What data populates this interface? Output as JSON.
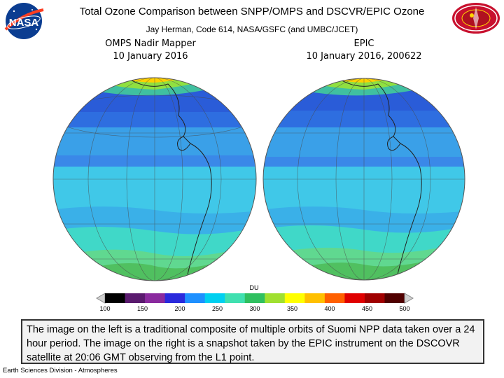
{
  "header": {
    "title": "Total Ozone Comparison between SNPP/OMPS and DSCVR/EPIC Ozone",
    "subtitle": "Jay Herman, Code 614, NASA/GSFC (and UMBC/JCET)"
  },
  "logos": {
    "left": "NASA",
    "right_icon": "mission-patch-icon"
  },
  "maps": [
    {
      "line1": "OMPS Nadir Mapper",
      "line2": "10 January 2016"
    },
    {
      "line1": "EPIC",
      "line2": "10 January 2016, 200622"
    }
  ],
  "colorbar": {
    "unit": "DU",
    "ticks": [
      "100",
      "150",
      "200",
      "250",
      "300",
      "350",
      "400",
      "450",
      "500"
    ],
    "colors": [
      "#000000",
      "#5a1a6e",
      "#8a2a9e",
      "#2a2adc",
      "#1e90ff",
      "#00d0f0",
      "#40e0b0",
      "#30c060",
      "#a0e030",
      "#ffff00",
      "#ffc000",
      "#ff6000",
      "#e00000",
      "#a00000",
      "#500000"
    ]
  },
  "colors": {
    "ocean_low": "#2a5cd8",
    "ocean_mid": "#3aa0e8",
    "band": "#2e6ee0",
    "mid_lat": "#40d0d8",
    "high_lat": "#60d890",
    "ozone_high": "#ffd000"
  },
  "caption": "The image on the left is a traditional composite of multiple orbits of Suomi NPP data taken over a 24 hour period. The image on the right is a snapshot taken by the EPIC instrument on the DSCOVR satellite at 20:06 GMT observing from the L1 point.",
  "footer": "Earth Sciences Division - Atmospheres"
}
